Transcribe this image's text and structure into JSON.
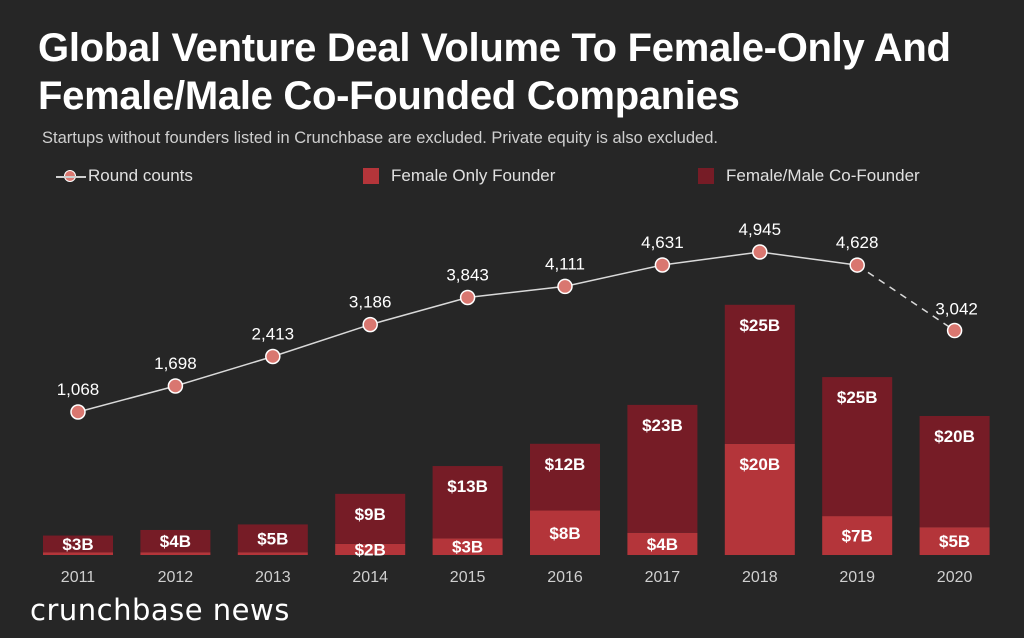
{
  "title": "Global Venture Deal Volume To Female-Only And Female/Male Co-Founded Companies",
  "subtitle": "Startups without founders listed in Crunchbase are excluded. Private equity is also excluded.",
  "brand": "crunchbase news",
  "colors": {
    "background": "#262626",
    "female_only": "#b4353a",
    "co_founder": "#761c26",
    "round_marker": "#d97770",
    "line": "#d9d9d9"
  },
  "legend": {
    "round_counts": "Round counts",
    "female_only": "Female Only Founder",
    "co_founder": "Female/Male Co-Founder"
  },
  "chart_data": {
    "type": "bar",
    "categories": [
      "2011",
      "2012",
      "2013",
      "2014",
      "2015",
      "2016",
      "2017",
      "2018",
      "2019",
      "2020"
    ],
    "series": [
      {
        "name": "Female Only Founder",
        "values": [
          0.5,
          0.5,
          0.5,
          2,
          3,
          8,
          4,
          20,
          7,
          5
        ],
        "labels": [
          "",
          "",
          "",
          "$2B",
          "$3B",
          "$8B",
          "$4B",
          "$20B",
          "$7B",
          "$5B"
        ]
      },
      {
        "name": "Female/Male Co-Founder",
        "values": [
          3,
          4,
          5,
          9,
          13,
          12,
          23,
          25,
          25,
          20
        ],
        "labels": [
          "$3B",
          "$4B",
          "$5B",
          "$9B",
          "$13B",
          "$12B",
          "$23B",
          "$25B",
          "$25B",
          "$20B"
        ]
      },
      {
        "name": "Round counts",
        "type": "line",
        "values": [
          1068,
          1698,
          2413,
          3186,
          3843,
          4111,
          4631,
          4945,
          4628,
          3042
        ],
        "labels": [
          "1,068",
          "1,698",
          "2,413",
          "3,186",
          "3,843",
          "4,111",
          "4,631",
          "4,945",
          "4,628",
          "3,042"
        ],
        "dashed_last_segment": true
      }
    ],
    "stacked": true,
    "title": "Global Venture Deal Volume To Female-Only And Female/Male Co-Founded Companies",
    "xlabel": "",
    "ylabel": "",
    "grid": false,
    "legend_position": "top"
  }
}
